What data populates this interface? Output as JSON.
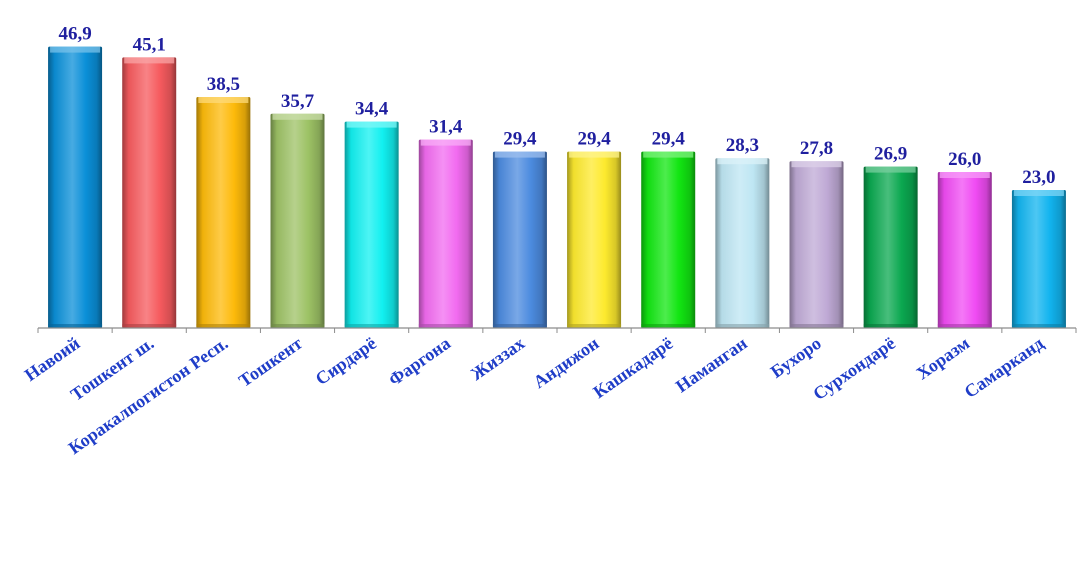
{
  "chart_data": {
    "type": "bar",
    "title": "",
    "xlabel": "",
    "ylabel": "",
    "ylim": [
      0,
      50
    ],
    "grid": false,
    "legend": "none",
    "categories": [
      "Навоий",
      "Тошкент ш.",
      "Коракалпогистон Респ.",
      "Тошкент",
      "Сирдарё",
      "Фаргона",
      "Жиззах",
      "Андижон",
      "Кашкадарё",
      "Наманган",
      "Бухоро",
      "Сурхондарё",
      "Хоразм",
      "Самарканд"
    ],
    "values": [
      46.9,
      45.1,
      38.5,
      35.7,
      34.4,
      31.4,
      29.4,
      29.4,
      29.4,
      28.3,
      27.8,
      26.9,
      26.0,
      23.0
    ],
    "value_labels": [
      "46,9",
      "45,1",
      "38,5",
      "35,7",
      "34,4",
      "31,4",
      "29,4",
      "29,4",
      "29,4",
      "28,3",
      "27,8",
      "26,9",
      "26,0",
      "23,0"
    ],
    "bar_colors": [
      "#0A8FD8",
      "#F65A5E",
      "#FDBA0A",
      "#9DC265",
      "#12F0F0",
      "#F26BF0",
      "#4C8BDF",
      "#FDEA2E",
      "#12E612",
      "#BEE6F3",
      "#BFA9D5",
      "#0BA850",
      "#F04BF3",
      "#12B4EF"
    ],
    "value_label_color": "#1F1F9F",
    "tick_label_color": "#1F3DC8",
    "axis_color": "#8C8C8C"
  }
}
